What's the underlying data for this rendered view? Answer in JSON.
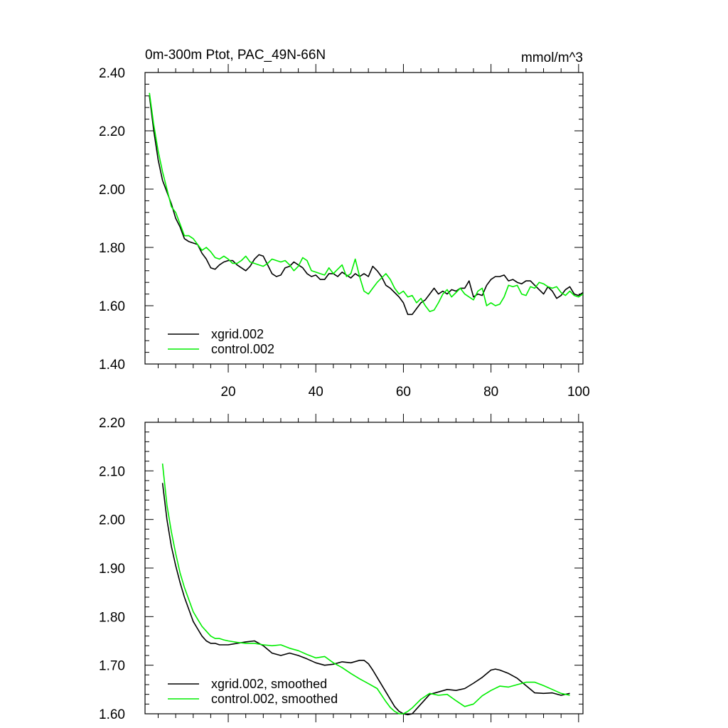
{
  "colors": {
    "xgrid": "#000000",
    "control": "#00ee00"
  },
  "chart_data": [
    {
      "type": "line",
      "title": "0m-300m Ptot, PAC_49N-66N",
      "units": "mmol/m^3",
      "xlim": [
        1,
        101
      ],
      "ylim": [
        1.4,
        2.4
      ],
      "xticks": [
        20,
        40,
        60,
        80,
        100
      ],
      "xtick_labels": [
        "20",
        "40",
        "60",
        "80",
        "100"
      ],
      "yticks": [
        1.4,
        1.6,
        1.8,
        2.0,
        2.2,
        2.4
      ],
      "ytick_labels": [
        "1.40",
        "1.60",
        "1.80",
        "2.00",
        "2.20",
        "2.40"
      ],
      "legend_position": "bottom-left",
      "series": [
        {
          "name": "xgrid.002",
          "color": "#000000",
          "x": [
            2,
            3,
            4,
            5,
            6,
            7,
            8,
            9,
            10,
            11,
            12,
            13,
            14,
            15,
            16,
            17,
            18,
            19,
            20,
            21,
            22,
            23,
            24,
            25,
            26,
            27,
            28,
            29,
            30,
            31,
            32,
            33,
            34,
            35,
            36,
            37,
            38,
            39,
            40,
            41,
            42,
            43,
            44,
            45,
            46,
            47,
            48,
            49,
            50,
            51,
            52,
            53,
            54,
            55,
            56,
            57,
            58,
            59,
            60,
            61,
            62,
            63,
            64,
            65,
            66,
            67,
            68,
            69,
            70,
            71,
            72,
            73,
            74,
            75,
            76,
            77,
            78,
            79,
            80,
            81,
            82,
            83,
            84,
            85,
            86,
            87,
            88,
            89,
            90,
            91,
            92,
            93,
            94,
            95,
            96,
            97,
            98,
            99,
            100,
            101
          ],
          "values": [
            2.32,
            2.2,
            2.1,
            2.03,
            1.99,
            1.95,
            1.9,
            1.87,
            1.83,
            1.82,
            1.815,
            1.81,
            1.78,
            1.76,
            1.73,
            1.725,
            1.74,
            1.75,
            1.755,
            1.755,
            1.74,
            1.73,
            1.72,
            1.735,
            1.76,
            1.775,
            1.77,
            1.74,
            1.71,
            1.7,
            1.705,
            1.73,
            1.735,
            1.75,
            1.74,
            1.73,
            1.71,
            1.7,
            1.705,
            1.69,
            1.69,
            1.71,
            1.71,
            1.7,
            1.715,
            1.705,
            1.695,
            1.71,
            1.7,
            1.71,
            1.7,
            1.735,
            1.72,
            1.7,
            1.67,
            1.66,
            1.645,
            1.63,
            1.61,
            1.57,
            1.57,
            1.59,
            1.61,
            1.62,
            1.64,
            1.66,
            1.64,
            1.65,
            1.64,
            1.655,
            1.65,
            1.66,
            1.66,
            1.685,
            1.63,
            1.64,
            1.635,
            1.67,
            1.69,
            1.7,
            1.7,
            1.705,
            1.685,
            1.69,
            1.68,
            1.675,
            1.685,
            1.685,
            1.67,
            1.655,
            1.64,
            1.665,
            1.65,
            1.625,
            1.635,
            1.655,
            1.665,
            1.64,
            1.635,
            1.645
          ]
        },
        {
          "name": "control.002",
          "color": "#00ee00",
          "x": [
            2,
            3,
            4,
            5,
            6,
            7,
            8,
            9,
            10,
            11,
            12,
            13,
            14,
            15,
            16,
            17,
            18,
            19,
            20,
            21,
            22,
            23,
            24,
            25,
            26,
            27,
            28,
            29,
            30,
            31,
            32,
            33,
            34,
            35,
            36,
            37,
            38,
            39,
            40,
            41,
            42,
            43,
            44,
            45,
            46,
            47,
            48,
            49,
            50,
            51,
            52,
            53,
            54,
            55,
            56,
            57,
            58,
            59,
            60,
            61,
            62,
            63,
            64,
            65,
            66,
            67,
            68,
            69,
            70,
            71,
            72,
            73,
            74,
            75,
            76,
            77,
            78,
            79,
            80,
            81,
            82,
            83,
            84,
            85,
            86,
            87,
            88,
            89,
            90,
            91,
            92,
            93,
            94,
            95,
            96,
            97,
            98,
            99,
            100,
            101
          ],
          "values": [
            2.33,
            2.22,
            2.13,
            2.06,
            2.0,
            1.94,
            1.92,
            1.88,
            1.84,
            1.84,
            1.83,
            1.81,
            1.79,
            1.8,
            1.785,
            1.765,
            1.76,
            1.77,
            1.76,
            1.745,
            1.745,
            1.755,
            1.77,
            1.75,
            1.745,
            1.74,
            1.735,
            1.745,
            1.76,
            1.755,
            1.75,
            1.755,
            1.74,
            1.72,
            1.735,
            1.765,
            1.755,
            1.72,
            1.715,
            1.71,
            1.705,
            1.73,
            1.71,
            1.725,
            1.74,
            1.7,
            1.71,
            1.76,
            1.7,
            1.65,
            1.64,
            1.66,
            1.68,
            1.695,
            1.71,
            1.69,
            1.66,
            1.64,
            1.65,
            1.63,
            1.635,
            1.61,
            1.625,
            1.6,
            1.58,
            1.585,
            1.61,
            1.64,
            1.655,
            1.63,
            1.645,
            1.66,
            1.64,
            1.63,
            1.62,
            1.65,
            1.66,
            1.6,
            1.61,
            1.6,
            1.605,
            1.63,
            1.67,
            1.665,
            1.67,
            1.64,
            1.635,
            1.665,
            1.66,
            1.68,
            1.675,
            1.665,
            1.66,
            1.665,
            1.645,
            1.635,
            1.65,
            1.635,
            1.63,
            1.64
          ]
        }
      ]
    },
    {
      "type": "line",
      "title": "",
      "xlim": [
        1,
        101
      ],
      "ylim": [
        1.6,
        2.2
      ],
      "xticks": [
        20,
        40,
        60,
        80,
        100
      ],
      "yticks": [
        1.6,
        1.7,
        1.8,
        1.9,
        2.0,
        2.1,
        2.2
      ],
      "ytick_labels": [
        "1.60",
        "1.70",
        "1.80",
        "1.90",
        "2.00",
        "2.10",
        "2.20"
      ],
      "legend_position": "bottom-left",
      "series": [
        {
          "name": "xgrid.002, smoothed",
          "color": "#000000",
          "x": [
            5,
            6,
            7,
            8,
            9,
            10,
            11,
            12,
            13,
            14,
            15,
            16,
            17,
            18,
            19,
            20,
            22,
            24,
            26,
            28,
            30,
            32,
            34,
            36,
            38,
            40,
            42,
            44,
            46,
            48,
            50,
            51,
            52,
            53,
            54,
            56,
            58,
            59,
            60,
            61,
            62,
            63,
            64,
            66,
            68,
            70,
            72,
            74,
            76,
            78,
            80,
            81,
            82,
            84,
            86,
            88,
            90,
            92,
            94,
            96,
            98
          ],
          "values": [
            2.075,
            2.0,
            1.945,
            1.905,
            1.87,
            1.84,
            1.815,
            1.79,
            1.775,
            1.76,
            1.75,
            1.745,
            1.745,
            1.742,
            1.742,
            1.742,
            1.745,
            1.748,
            1.75,
            1.74,
            1.725,
            1.72,
            1.725,
            1.72,
            1.713,
            1.705,
            1.7,
            1.702,
            1.707,
            1.705,
            1.71,
            1.71,
            1.703,
            1.69,
            1.675,
            1.645,
            1.615,
            1.605,
            1.6,
            1.598,
            1.6,
            1.61,
            1.62,
            1.64,
            1.645,
            1.65,
            1.648,
            1.652,
            1.663,
            1.675,
            1.69,
            1.692,
            1.69,
            1.683,
            1.673,
            1.658,
            1.643,
            1.642,
            1.643,
            1.638,
            1.642
          ]
        },
        {
          "name": "control.002, smoothed",
          "color": "#00ee00",
          "x": [
            5,
            6,
            7,
            8,
            9,
            10,
            11,
            12,
            13,
            14,
            15,
            16,
            17,
            18,
            19,
            20,
            22,
            24,
            26,
            28,
            30,
            32,
            34,
            36,
            38,
            40,
            42,
            44,
            46,
            48,
            50,
            52,
            54,
            56,
            57,
            58,
            59,
            60,
            61,
            62,
            64,
            66,
            68,
            70,
            72,
            74,
            76,
            78,
            80,
            82,
            84,
            86,
            88,
            90,
            92,
            94,
            96,
            98
          ],
          "values": [
            2.115,
            2.03,
            1.975,
            1.93,
            1.89,
            1.86,
            1.835,
            1.81,
            1.795,
            1.78,
            1.77,
            1.76,
            1.755,
            1.755,
            1.752,
            1.75,
            1.747,
            1.745,
            1.745,
            1.742,
            1.74,
            1.742,
            1.735,
            1.73,
            1.722,
            1.715,
            1.718,
            1.705,
            1.695,
            1.683,
            1.672,
            1.662,
            1.652,
            1.625,
            1.613,
            1.605,
            1.6,
            1.6,
            1.605,
            1.612,
            1.63,
            1.642,
            1.638,
            1.64,
            1.627,
            1.615,
            1.62,
            1.637,
            1.648,
            1.657,
            1.655,
            1.66,
            1.665,
            1.665,
            1.658,
            1.65,
            1.642,
            1.638
          ]
        }
      ]
    }
  ]
}
